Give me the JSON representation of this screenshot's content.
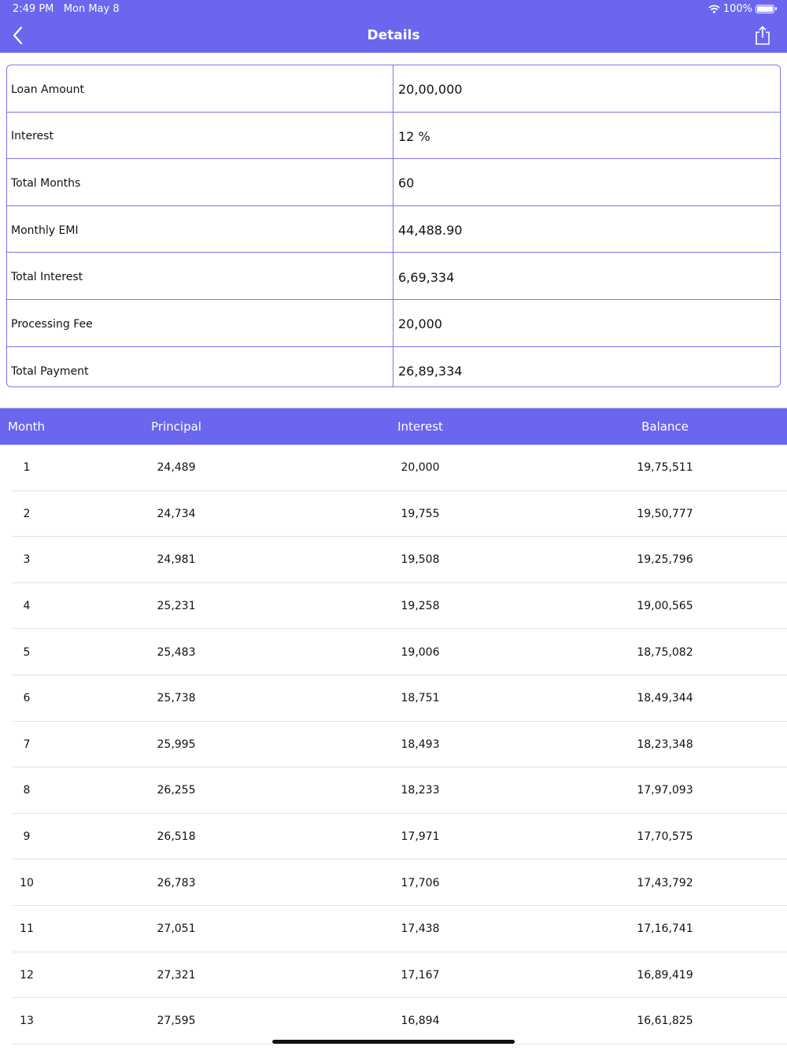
{
  "status": {
    "time": "2:49 PM",
    "date": "Mon May 8",
    "battery": "100%"
  },
  "nav": {
    "title": "Details",
    "back_icon": "chevron-left-icon",
    "share_icon": "share-icon"
  },
  "colors": {
    "accent": "#6b66ee",
    "border": "#7b76f0"
  },
  "summary": [
    {
      "label": "Loan Amount",
      "value": "20,00,000"
    },
    {
      "label": "Interest",
      "value": "12 %"
    },
    {
      "label": "Total Months",
      "value": "60"
    },
    {
      "label": "Monthly EMI",
      "value": "44,488.90"
    },
    {
      "label": "Total Interest",
      "value": "6,69,334"
    },
    {
      "label": "Processing Fee",
      "value": "20,000"
    },
    {
      "label": "Total Payment",
      "value": "26,89,334"
    }
  ],
  "schedule": {
    "headers": [
      "Month",
      "Principal",
      "Interest",
      "Balance"
    ],
    "rows": [
      [
        "1",
        "24,489",
        "20,000",
        "19,75,511"
      ],
      [
        "2",
        "24,734",
        "19,755",
        "19,50,777"
      ],
      [
        "3",
        "24,981",
        "19,508",
        "19,25,796"
      ],
      [
        "4",
        "25,231",
        "19,258",
        "19,00,565"
      ],
      [
        "5",
        "25,483",
        "19,006",
        "18,75,082"
      ],
      [
        "6",
        "25,738",
        "18,751",
        "18,49,344"
      ],
      [
        "7",
        "25,995",
        "18,493",
        "18,23,348"
      ],
      [
        "8",
        "26,255",
        "18,233",
        "17,97,093"
      ],
      [
        "9",
        "26,518",
        "17,971",
        "17,70,575"
      ],
      [
        "10",
        "26,783",
        "17,706",
        "17,43,792"
      ],
      [
        "11",
        "27,051",
        "17,438",
        "17,16,741"
      ],
      [
        "12",
        "27,321",
        "17,167",
        "16,89,419"
      ],
      [
        "13",
        "27,595",
        "16,894",
        "16,61,825"
      ]
    ]
  }
}
